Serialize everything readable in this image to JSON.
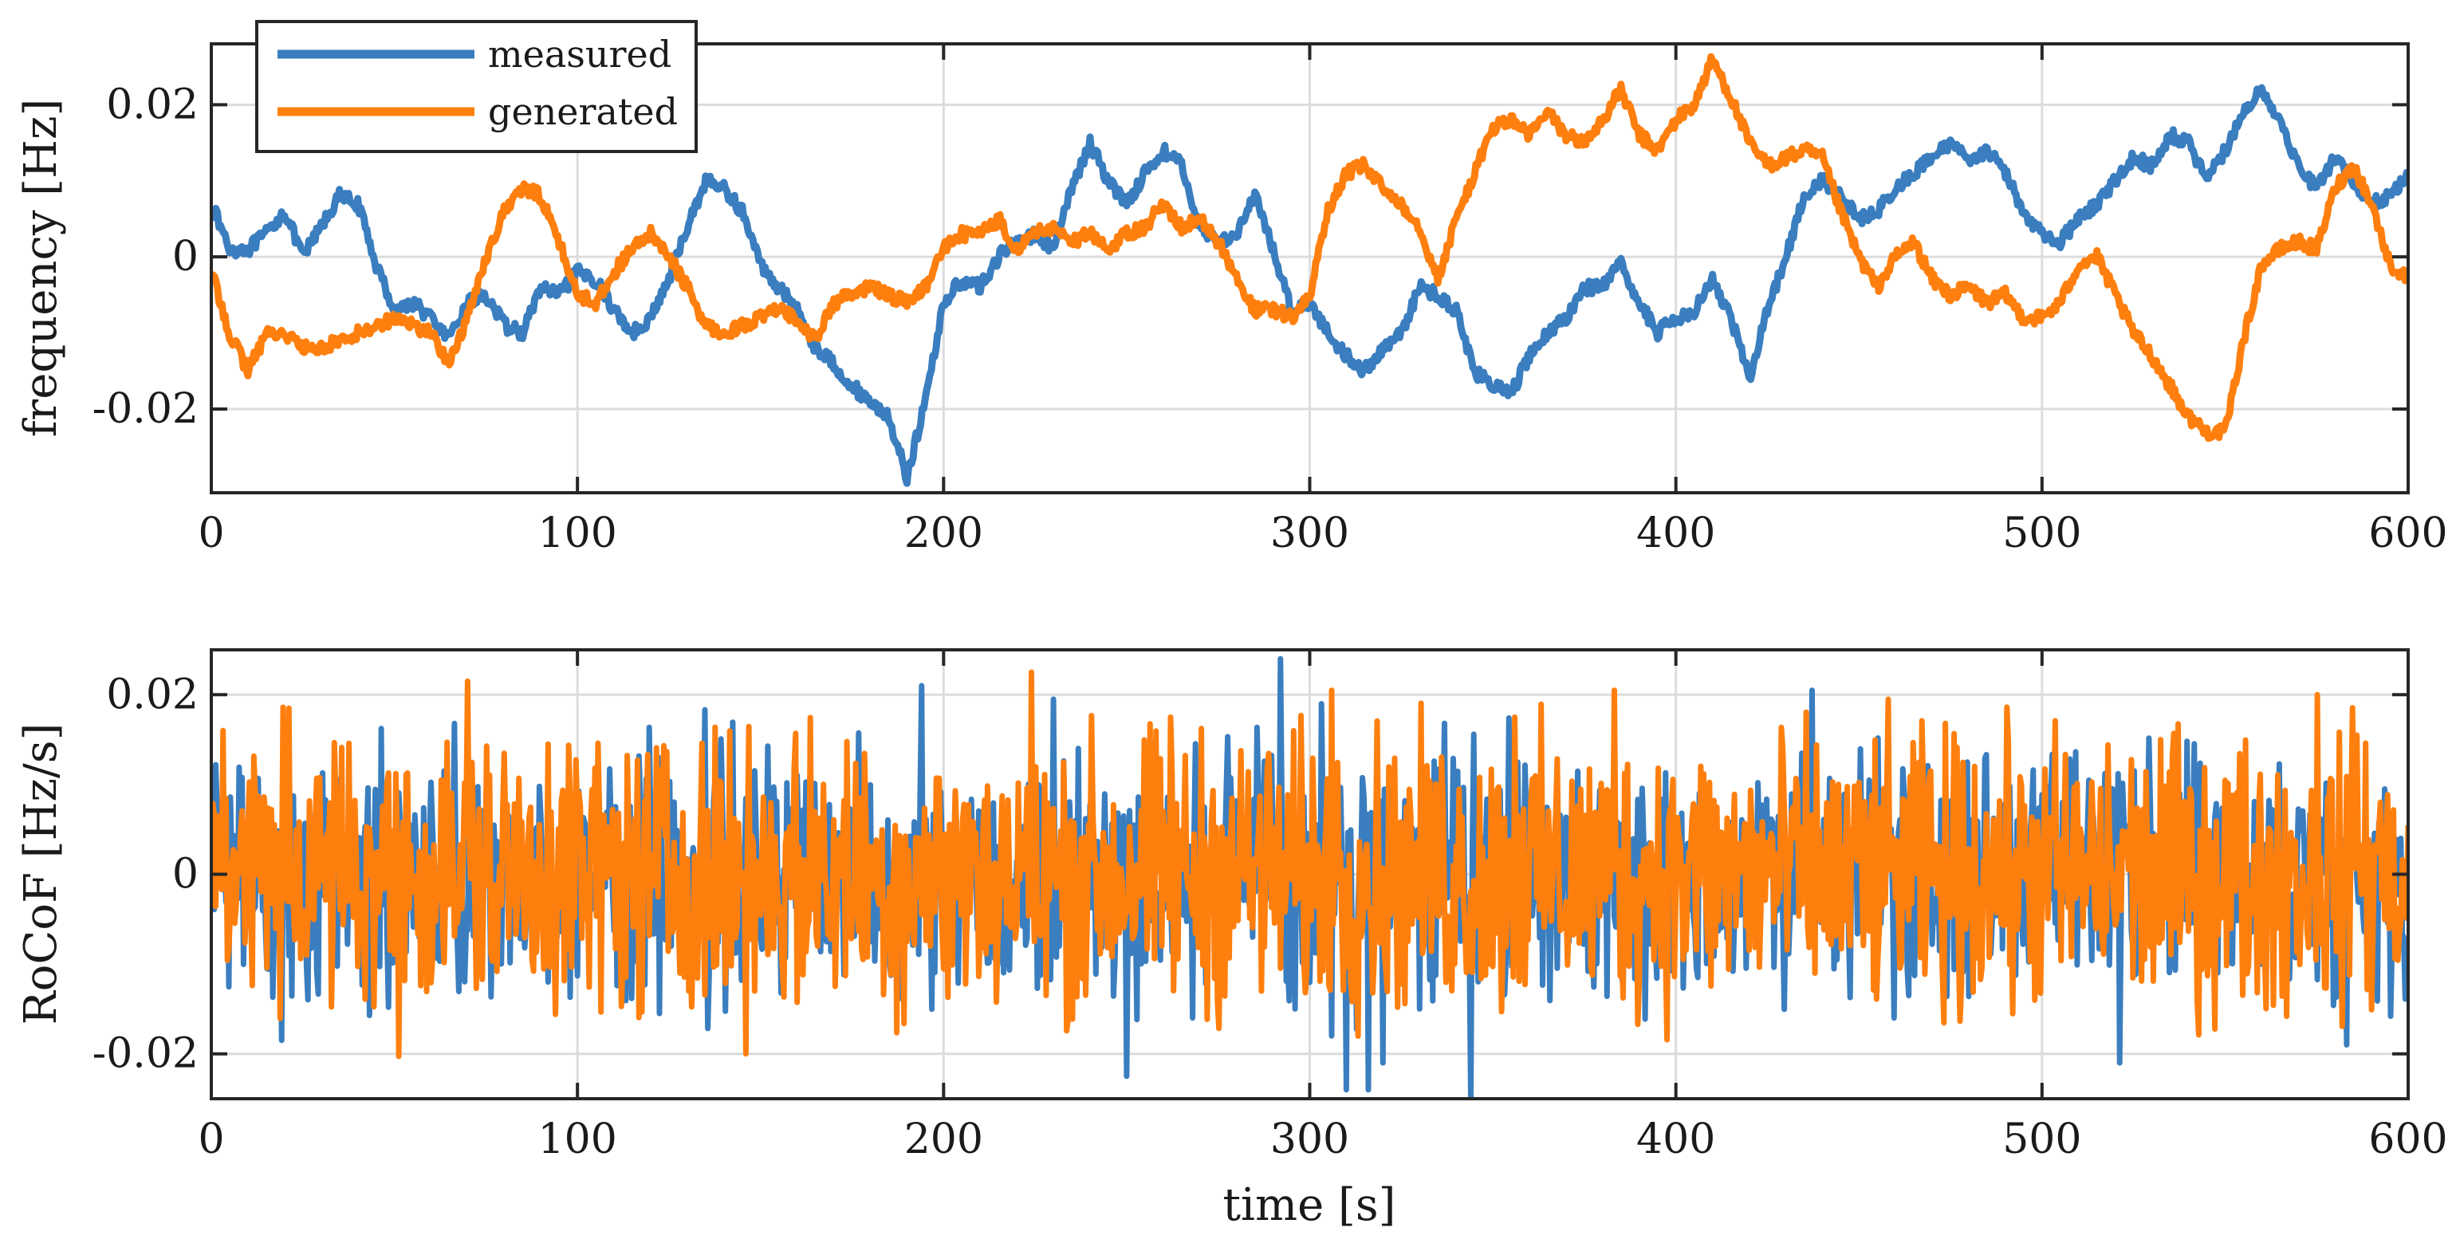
{
  "chart_data": [
    {
      "type": "line",
      "id": "frequency",
      "title": "",
      "xlabel": "",
      "ylabel": "frequency [Hz]",
      "xlim": [
        0,
        600
      ],
      "ylim": [
        -0.031,
        0.028
      ],
      "xticks": [
        0,
        100,
        200,
        300,
        400,
        500,
        600
      ],
      "xtick_labels": [
        "0",
        "100",
        "200",
        "300",
        "400",
        "500",
        "600"
      ],
      "yticks": [
        -0.02,
        0,
        0.02
      ],
      "ytick_labels": [
        "-0.02",
        "0",
        "0.02"
      ],
      "grid": true,
      "legend": {
        "position": "top-left",
        "entries": [
          "measured",
          "generated"
        ]
      },
      "series": [
        {
          "name": "measured",
          "color": "#3a7ebf",
          "x": [
            0,
            5,
            10,
            15,
            20,
            25,
            30,
            35,
            40,
            45,
            50,
            55,
            60,
            65,
            70,
            75,
            80,
            85,
            90,
            95,
            100,
            105,
            110,
            115,
            120,
            125,
            130,
            135,
            140,
            145,
            150,
            155,
            160,
            165,
            170,
            175,
            180,
            185,
            190,
            195,
            200,
            205,
            210,
            215,
            220,
            225,
            230,
            235,
            240,
            245,
            250,
            255,
            260,
            265,
            270,
            275,
            280,
            285,
            290,
            295,
            300,
            305,
            310,
            315,
            320,
            325,
            330,
            335,
            340,
            345,
            350,
            355,
            360,
            365,
            370,
            375,
            380,
            385,
            390,
            395,
            400,
            405,
            410,
            415,
            420,
            425,
            430,
            435,
            440,
            445,
            450,
            455,
            460,
            465,
            470,
            475,
            480,
            485,
            490,
            495,
            500,
            505,
            510,
            515,
            520,
            525,
            530,
            535,
            540,
            545,
            550,
            555,
            560,
            565,
            570,
            575,
            580,
            585,
            590,
            595,
            600
          ],
          "values": [
            0.007,
            0.001,
            0.001,
            0.003,
            0.006,
            0.0,
            0.004,
            0.008,
            0.007,
            -0.001,
            -0.007,
            -0.006,
            -0.008,
            -0.011,
            -0.006,
            -0.005,
            -0.009,
            -0.01,
            -0.004,
            -0.005,
            -0.002,
            -0.003,
            -0.007,
            -0.01,
            -0.008,
            -0.003,
            0.004,
            0.01,
            0.009,
            0.006,
            -0.001,
            -0.004,
            -0.007,
            -0.012,
            -0.014,
            -0.017,
            -0.019,
            -0.021,
            -0.029,
            -0.019,
            -0.006,
            -0.003,
            -0.004,
            0.0,
            0.002,
            0.003,
            0.001,
            0.009,
            0.015,
            0.01,
            0.007,
            0.011,
            0.014,
            0.012,
            0.004,
            0.002,
            0.003,
            0.008,
            0.001,
            -0.007,
            -0.006,
            -0.01,
            -0.013,
            -0.015,
            -0.012,
            -0.01,
            -0.004,
            -0.005,
            -0.007,
            -0.015,
            -0.017,
            -0.018,
            -0.013,
            -0.01,
            -0.008,
            -0.004,
            -0.004,
            -0.001,
            -0.006,
            -0.01,
            -0.008,
            -0.007,
            -0.003,
            -0.008,
            -0.016,
            -0.007,
            0.0,
            0.008,
            0.01,
            0.008,
            0.005,
            0.006,
            0.009,
            0.011,
            0.013,
            0.015,
            0.013,
            0.014,
            0.011,
            0.006,
            0.003,
            0.002,
            0.005,
            0.007,
            0.01,
            0.013,
            0.012,
            0.016,
            0.015,
            0.01,
            0.014,
            0.019,
            0.022,
            0.018,
            0.012,
            0.009,
            0.013,
            0.01,
            0.007,
            0.008,
            0.011
          ]
        },
        {
          "name": "generated",
          "color": "#ff7f0e",
          "x": [
            0,
            5,
            10,
            15,
            20,
            25,
            30,
            35,
            40,
            45,
            50,
            55,
            60,
            65,
            70,
            75,
            80,
            85,
            90,
            95,
            100,
            105,
            110,
            115,
            120,
            125,
            130,
            135,
            140,
            145,
            150,
            155,
            160,
            165,
            170,
            175,
            180,
            185,
            190,
            195,
            200,
            205,
            210,
            215,
            220,
            225,
            230,
            235,
            240,
            245,
            250,
            255,
            260,
            265,
            270,
            275,
            280,
            285,
            290,
            295,
            300,
            305,
            310,
            315,
            320,
            325,
            330,
            335,
            340,
            345,
            350,
            355,
            360,
            365,
            370,
            375,
            380,
            385,
            390,
            395,
            400,
            405,
            410,
            415,
            420,
            425,
            430,
            435,
            440,
            445,
            450,
            455,
            460,
            465,
            470,
            475,
            480,
            485,
            490,
            495,
            500,
            505,
            510,
            515,
            520,
            525,
            530,
            535,
            540,
            545,
            550,
            555,
            560,
            565,
            570,
            575,
            580,
            585,
            590,
            595,
            600
          ],
          "values": [
            -0.002,
            -0.01,
            -0.015,
            -0.01,
            -0.01,
            -0.012,
            -0.012,
            -0.011,
            -0.01,
            -0.009,
            -0.008,
            -0.009,
            -0.01,
            -0.014,
            -0.008,
            0.0,
            0.006,
            0.009,
            0.008,
            0.002,
            -0.005,
            -0.006,
            -0.002,
            0.001,
            0.003,
            0.0,
            -0.004,
            -0.009,
            -0.01,
            -0.009,
            -0.008,
            -0.007,
            -0.008,
            -0.011,
            -0.006,
            -0.005,
            -0.004,
            -0.005,
            -0.006,
            -0.004,
            0.001,
            0.003,
            0.003,
            0.005,
            0.001,
            0.003,
            0.004,
            0.002,
            0.003,
            0.001,
            0.003,
            0.004,
            0.007,
            0.004,
            0.005,
            0.002,
            -0.003,
            -0.007,
            -0.007,
            -0.008,
            -0.005,
            0.006,
            0.011,
            0.012,
            0.009,
            0.007,
            0.004,
            -0.003,
            0.005,
            0.011,
            0.017,
            0.018,
            0.016,
            0.019,
            0.016,
            0.015,
            0.018,
            0.022,
            0.016,
            0.014,
            0.018,
            0.02,
            0.026,
            0.021,
            0.015,
            0.012,
            0.013,
            0.014,
            0.013,
            0.006,
            0.0,
            -0.004,
            0.0,
            0.002,
            -0.003,
            -0.005,
            -0.004,
            -0.006,
            -0.005,
            -0.008,
            -0.008,
            -0.006,
            -0.001,
            0.0,
            -0.005,
            -0.01,
            -0.013,
            -0.017,
            -0.021,
            -0.023,
            -0.023,
            -0.011,
            -0.001,
            0.001,
            0.002,
            0.001,
            0.009,
            0.012,
            0.007,
            -0.001,
            -0.003
          ]
        }
      ]
    },
    {
      "type": "line",
      "id": "rocof",
      "title": "",
      "xlabel": "time [s]",
      "ylabel": "RoCoF [Hz/s]",
      "xlim": [
        0,
        600
      ],
      "ylim": [
        -0.025,
        0.025
      ],
      "xticks": [
        0,
        100,
        200,
        300,
        400,
        500,
        600
      ],
      "xtick_labels": [
        "0",
        "100",
        "200",
        "300",
        "400",
        "500",
        "600"
      ],
      "yticks": [
        -0.02,
        0,
        0.02
      ],
      "ytick_labels": [
        "-0.02",
        "0",
        "0.02"
      ],
      "grid": true,
      "noise": {
        "description": "dense noise around 0; typical amplitude about ±0.008 Hz/s with spikes up to about ±0.024 Hz/s",
        "measured": {
          "typical_amplitude": 0.0065,
          "spikes": [
            [
              194,
              0.021
            ],
            [
              230,
              0.0195
            ],
            [
              250,
              -0.0225
            ],
            [
              292,
              0.024
            ],
            [
              296,
              -0.015
            ],
            [
              303,
              0.019
            ],
            [
              306,
              -0.018
            ],
            [
              310,
              -0.024
            ],
            [
              316,
              -0.024
            ],
            [
              320,
              -0.021
            ],
            [
              330,
              -0.015
            ],
            [
              344,
              -0.025
            ],
            [
              437,
              0.0205
            ],
            [
              521,
              -0.021
            ],
            [
              583,
              -0.019
            ]
          ]
        },
        "generated": {
          "typical_amplitude": 0.0075,
          "spikes": [
            [
              3,
              0.016
            ],
            [
              21,
              0.0185
            ],
            [
              70,
              0.0215
            ],
            [
              92,
              0.0145
            ],
            [
              224,
              0.0225
            ],
            [
              228,
              -0.0135
            ],
            [
              262,
              0.0175
            ],
            [
              306,
              0.0205
            ],
            [
              356,
              0.0175
            ],
            [
              383,
              0.0205
            ],
            [
              575,
              0.02
            ],
            [
              586,
              0.0155
            ]
          ]
        }
      }
    }
  ]
}
